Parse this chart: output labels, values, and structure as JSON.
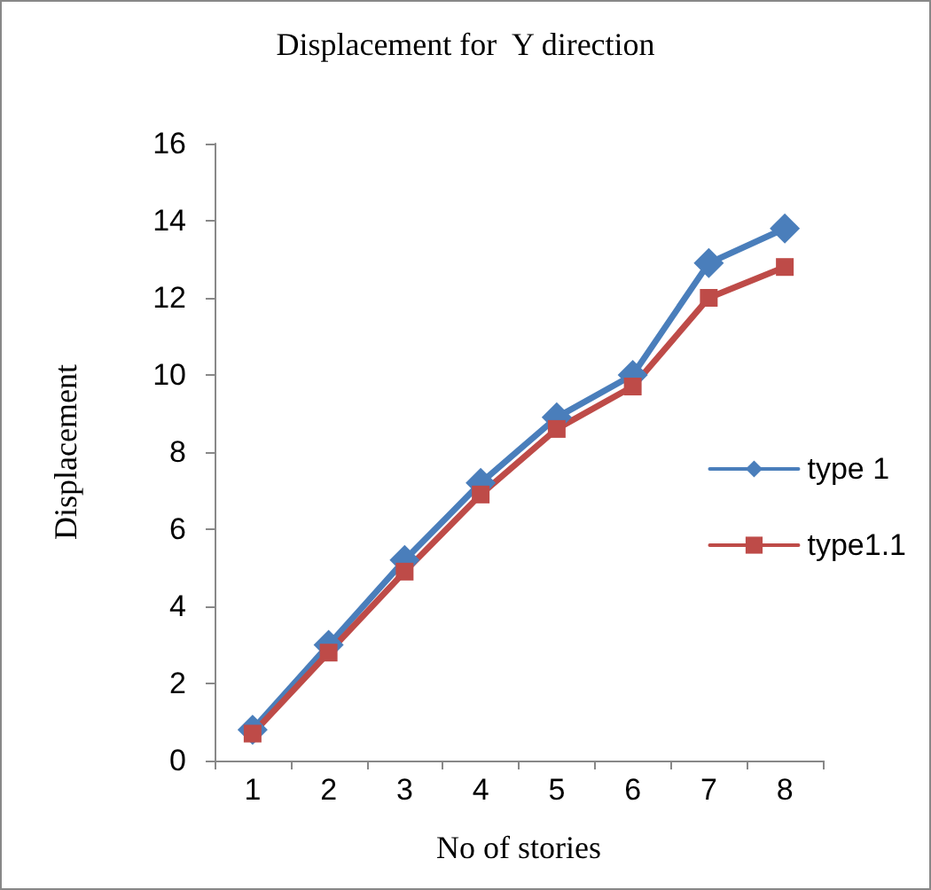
{
  "chart_data": {
    "type": "line",
    "title": "Displacement for  Y direction",
    "xlabel": "No of stories",
    "ylabel": "Displacement",
    "categories": [
      "1",
      "2",
      "3",
      "4",
      "5",
      "6",
      "7",
      "8"
    ],
    "series": [
      {
        "name": "type 1",
        "color": "#4a7ebb",
        "marker": "diamond",
        "values": [
          0.8,
          3.0,
          5.2,
          7.2,
          8.9,
          10.0,
          12.9,
          13.8
        ]
      },
      {
        "name": "type1.1",
        "color": "#be4b48",
        "marker": "square",
        "values": [
          0.7,
          2.8,
          4.9,
          6.9,
          8.6,
          9.7,
          12.0,
          12.8
        ]
      }
    ],
    "ylim": [
      0,
      16
    ],
    "yticks": [
      0,
      2,
      4,
      6,
      8,
      10,
      12,
      14,
      16
    ],
    "grid": false,
    "legend": "right",
    "line_style": "solid"
  }
}
